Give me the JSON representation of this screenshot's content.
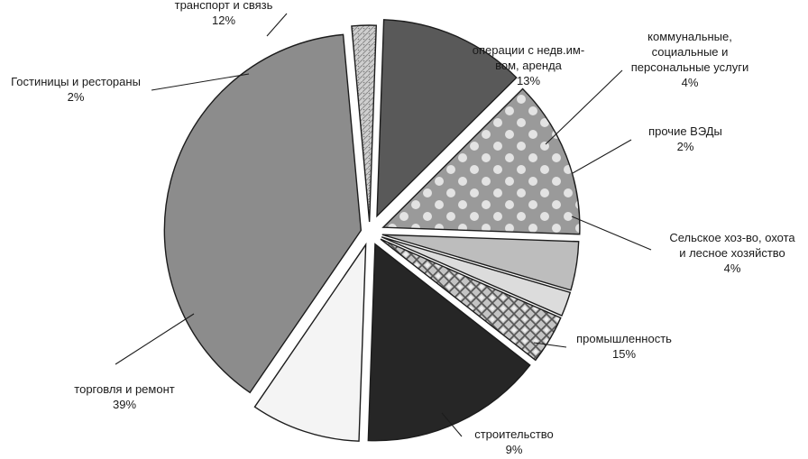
{
  "chart_data": {
    "type": "pie",
    "title": "",
    "slices": [
      {
        "name": "транспорт и связь",
        "value": 12,
        "label": "12%",
        "color": "#595959",
        "pattern": "solid"
      },
      {
        "name": "операции с недв.им-вом, аренда",
        "name_lines": [
          "операции с недв.им-",
          "вом, аренда"
        ],
        "value": 13,
        "label": "13%",
        "color": "#9a9a9a",
        "pattern": "dots"
      },
      {
        "name": "коммунальные, социальные и персональные услуги",
        "name_lines": [
          "коммунальные,",
          "социальные и",
          "персональные услуги"
        ],
        "value": 4,
        "label": "4%",
        "color": "#bdbdbd",
        "pattern": "solid"
      },
      {
        "name": "прочие ВЭДы",
        "value": 2,
        "label": "2%",
        "color": "#dcdcdc",
        "pattern": "solid"
      },
      {
        "name": "Сельское хоз-во, охота и лесное хозяйство",
        "name_lines": [
          "Сельское хоз-во, охота",
          "и лесное хозяйство"
        ],
        "value": 4,
        "label": "4%",
        "color": "#a6a6a6",
        "pattern": "diamond"
      },
      {
        "name": "промышленность",
        "value": 15,
        "label": "15%",
        "color": "#262626",
        "pattern": "solid"
      },
      {
        "name": "строительство",
        "value": 9,
        "label": "9%",
        "color": "#f4f4f4",
        "pattern": "solid"
      },
      {
        "name": "торговля и ремонт",
        "value": 39,
        "label": "39%",
        "color": "#8c8c8c",
        "pattern": "solid"
      },
      {
        "name": "Гостиницы и рестораны",
        "value": 2,
        "label": "2%",
        "color": "#c9c9c9",
        "pattern": "texture"
      }
    ]
  }
}
